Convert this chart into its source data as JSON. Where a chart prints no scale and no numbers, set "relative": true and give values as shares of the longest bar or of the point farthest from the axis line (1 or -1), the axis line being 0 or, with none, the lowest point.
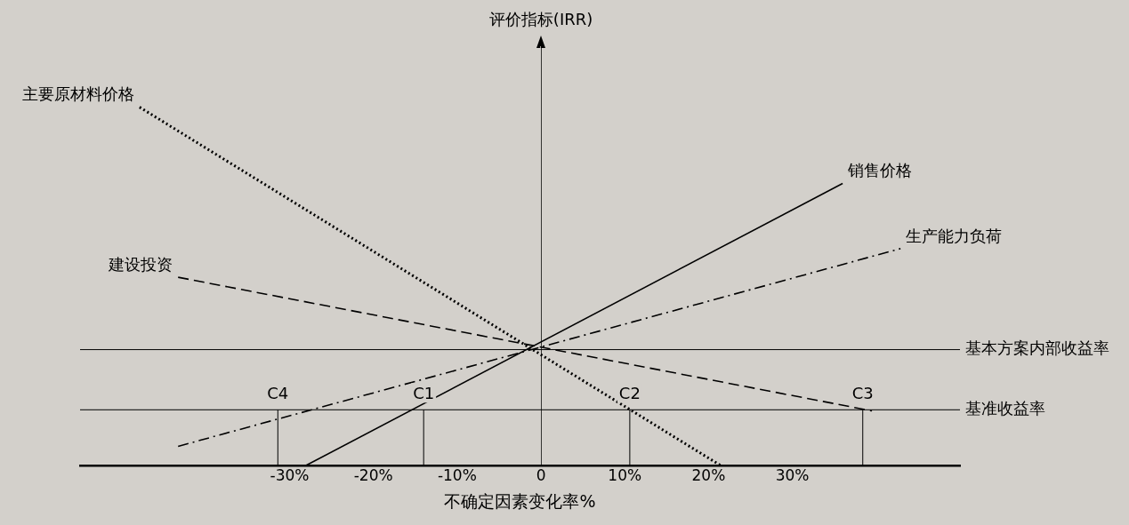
{
  "chart_data": {
    "type": "line",
    "relative": true,
    "xlabel": "不确定因素变化率%",
    "ylabel": "评价指标(IRR)",
    "xlim": [
      -55,
      50
    ],
    "xticks": [
      {
        "value": -30,
        "label": "-30%"
      },
      {
        "value": -20,
        "label": "-20%"
      },
      {
        "value": -10,
        "label": "-10%"
      },
      0,
      {
        "value": 10,
        "label": "10%"
      },
      {
        "value": 20,
        "label": "20%"
      },
      {
        "value": 30,
        "label": "30%"
      }
    ],
    "series": [
      {
        "name": "主要原材料价格",
        "color": "#000000",
        "line_style": "dotted",
        "x": [
          -47.9,
          21.4
        ],
        "values": [
          1,
          0
        ]
      },
      {
        "name": "销售价格",
        "color": "#000000",
        "line_style": "solid",
        "x": [
          -28,
          36
        ],
        "values": [
          0,
          0.787
        ]
      },
      {
        "name": "建设投资",
        "color": "#000000",
        "line_style": "dashed",
        "x": [
          -43.3,
          39.5
        ],
        "values": [
          0.525,
          0.152
        ]
      },
      {
        "name": "生产能力负荷",
        "color": "#000000",
        "line_style": "dashdot",
        "x": [
          -43.3,
          42.9
        ],
        "values": [
          0.053,
          0.605
        ]
      }
    ],
    "ref_lines": [
      {
        "axis": "y",
        "value": 0.323,
        "label": "基本方案内部收益率"
      },
      {
        "axis": "y",
        "value": 0.155,
        "label": "基准收益率"
      }
    ],
    "annotations": [
      {
        "text": "C4",
        "x": -31.4,
        "y": 0.155
      },
      {
        "text": "C1",
        "x": -14,
        "y": 0.155
      },
      {
        "text": "C2",
        "x": 10.6,
        "y": 0.155
      },
      {
        "text": "C3",
        "x": 38.4,
        "y": 0.155
      }
    ],
    "grid": false,
    "legend": false,
    "marker": "none"
  }
}
